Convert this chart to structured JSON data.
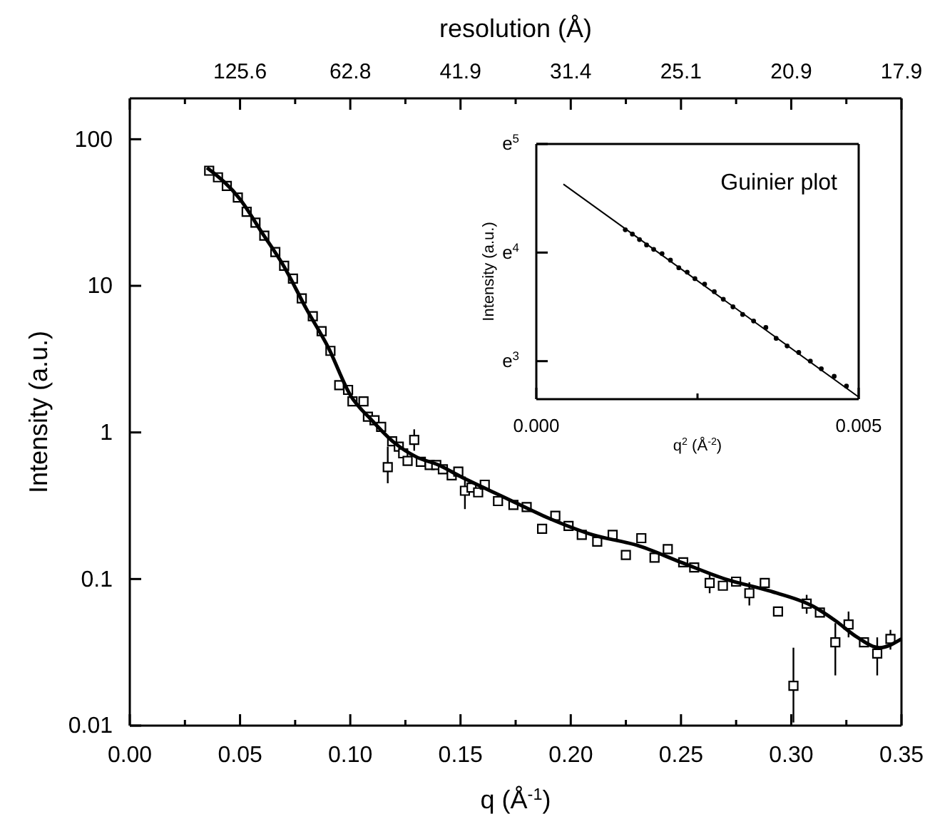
{
  "chart_data": [
    {
      "type": "scatter",
      "xlabel": "q (Å$^{-1}$)",
      "ylabel": "Intensity (a.u.)",
      "x2label": "resolution (Å)",
      "log": "y",
      "xlim": [
        0,
        0.35
      ],
      "xticks": [
        {
          "value": 0,
          "label": "0.00"
        },
        {
          "value": 0.025,
          "label": null
        },
        {
          "value": 0.05,
          "label": "0.05"
        },
        {
          "value": 0.075,
          "label": null
        },
        {
          "value": 0.1,
          "label": "0.10"
        },
        {
          "value": 0.125,
          "label": null
        },
        {
          "value": 0.15,
          "label": "0.15"
        },
        {
          "value": 0.175,
          "label": null
        },
        {
          "value": 0.2,
          "label": "0.20"
        },
        {
          "value": 0.225,
          "label": null
        },
        {
          "value": 0.25,
          "label": "0.25"
        },
        {
          "value": 0.275,
          "label": null
        },
        {
          "value": 0.3,
          "label": "0.30"
        },
        {
          "value": 0.325,
          "label": null
        },
        {
          "value": 0.35,
          "label": "0.35"
        }
      ],
      "annotations": [
        {
          "text": "125.6",
          "x": 0.05
        },
        {
          "text": "62.8",
          "x": 0.1
        },
        {
          "text": "41.9",
          "x": 0.15
        },
        {
          "text": "31.4",
          "x": 0.2
        },
        {
          "text": "25.1",
          "x": 0.25
        },
        {
          "text": "20.9",
          "x": 0.3
        },
        {
          "text": "17.9",
          "x": 0.35
        }
      ],
      "ylim": [
        0.01,
        190
      ],
      "yticks": [
        0.01,
        0.1,
        1,
        10,
        100
      ],
      "series": [
        {
          "type": "scatter",
          "marker": "square",
          "color": "#000000",
          "x": [
            0.036,
            0.04,
            0.044,
            0.049,
            0.053,
            0.057,
            0.061,
            0.066,
            0.07,
            0.074,
            0.078,
            0.083,
            0.087,
            0.091,
            0.095,
            0.099,
            0.101,
            0.106,
            0.108,
            0.111,
            0.114,
            0.117,
            0.119,
            0.122,
            0.124,
            0.126,
            0.129,
            0.132,
            0.136,
            0.139,
            0.142,
            0.146,
            0.149,
            0.152,
            0.155,
            0.158,
            0.161,
            0.167,
            0.174,
            0.18,
            0.187,
            0.193,
            0.199,
            0.205,
            0.212,
            0.219,
            0.225,
            0.232,
            0.238,
            0.244,
            0.251,
            0.256,
            0.263,
            0.269,
            0.275,
            0.281,
            0.288,
            0.294,
            0.301,
            0.307,
            0.313,
            0.32,
            0.326,
            0.333,
            0.339,
            0.345
          ],
          "values": [
            61,
            55,
            48,
            40,
            32,
            27,
            22,
            17,
            13.7,
            11.2,
            8.2,
            6.2,
            4.9,
            3.6,
            2.1,
            1.95,
            1.63,
            1.63,
            1.28,
            1.21,
            1.09,
            0.58,
            0.87,
            0.8,
            0.72,
            0.64,
            0.89,
            0.63,
            0.6,
            0.6,
            0.56,
            0.51,
            0.54,
            0.4,
            0.42,
            0.39,
            0.44,
            0.34,
            0.32,
            0.31,
            0.22,
            0.27,
            0.23,
            0.2,
            0.18,
            0.2,
            0.146,
            0.19,
            0.14,
            0.16,
            0.13,
            0.12,
            0.094,
            0.09,
            0.096,
            0.08,
            0.094,
            0.06,
            0.0187,
            0.068,
            0.059,
            0.037,
            0.049,
            0.037,
            0.031,
            0.039
          ],
          "errors": [
            null,
            null,
            null,
            null,
            null,
            null,
            null,
            null,
            null,
            null,
            null,
            null,
            null,
            null,
            null,
            null,
            null,
            null,
            null,
            null,
            null,
            [
              0.45,
              0.8
            ],
            null,
            null,
            null,
            null,
            [
              0.75,
              1.05
            ],
            null,
            null,
            null,
            null,
            null,
            null,
            [
              0.3,
              0.5
            ],
            null,
            null,
            null,
            null,
            null,
            null,
            null,
            null,
            null,
            null,
            null,
            null,
            null,
            null,
            null,
            null,
            null,
            null,
            [
              0.08,
              0.11
            ],
            null,
            null,
            [
              0.066,
              0.095
            ],
            null,
            null,
            [
              0.0105,
              0.034
            ],
            [
              0.058,
              0.078
            ],
            null,
            [
              0.022,
              0.05
            ],
            [
              0.04,
              0.06
            ],
            null,
            [
              0.022,
              0.04
            ],
            [
              0.033,
              0.045
            ]
          ]
        },
        {
          "type": "line",
          "color": "#000000",
          "x": [
            0.035,
            0.05,
            0.06,
            0.07,
            0.08,
            0.09,
            0.1,
            0.11,
            0.12,
            0.13,
            0.14,
            0.15,
            0.17,
            0.19,
            0.21,
            0.23,
            0.25,
            0.27,
            0.29,
            0.31,
            0.32,
            0.33,
            0.34,
            0.35
          ],
          "values": [
            64,
            39,
            23,
            13.5,
            7,
            3.8,
            1.8,
            1.2,
            0.85,
            0.68,
            0.6,
            0.5,
            0.36,
            0.26,
            0.2,
            0.17,
            0.13,
            0.1,
            0.083,
            0.065,
            0.052,
            0.04,
            0.034,
            0.039
          ]
        }
      ]
    },
    {
      "type": "scatter",
      "xlabel": "q$^{2}$ (Å$^{-2}$)",
      "ylabel": "Intensity (a.u.)",
      "annotations": [
        "Guinier plot"
      ],
      "xlim": [
        0,
        0.005
      ],
      "xticks": [
        {
          "value": 0,
          "label": "0.000"
        },
        {
          "value": 0.0025,
          "label": null
        },
        {
          "value": 0.005,
          "label": "0.005"
        }
      ],
      "ylim": [
        2.65,
        5
      ],
      "yticks": [
        {
          "value": 3,
          "label": "e$^{3}$"
        },
        {
          "value": 4,
          "label": "e$^{4}$"
        },
        {
          "value": 5,
          "label": "e$^{5}$"
        }
      ],
      "series": [
        {
          "type": "scatter",
          "marker": "circle",
          "color": "#000000",
          "x": [
            0.00138,
            0.00149,
            0.0016,
            0.00171,
            0.00182,
            0.00195,
            0.00208,
            0.00221,
            0.00234,
            0.00246,
            0.00261,
            0.00276,
            0.0029,
            0.00305,
            0.0032,
            0.00337,
            0.00356,
            0.00372,
            0.00389,
            0.00407,
            0.00425,
            0.00442,
            0.00462,
            0.00481
          ],
          "values": [
            4.21,
            4.17,
            4.12,
            4.07,
            4.03,
            3.99,
            3.93,
            3.86,
            3.82,
            3.76,
            3.71,
            3.64,
            3.57,
            3.5,
            3.43,
            3.37,
            3.31,
            3.21,
            3.14,
            3.08,
            3.0,
            2.93,
            2.86,
            2.77
          ]
        },
        {
          "type": "line",
          "color": "#000000",
          "x": [
            0.00042,
            0.005
          ],
          "values": [
            4.63,
            2.67
          ]
        }
      ]
    }
  ]
}
